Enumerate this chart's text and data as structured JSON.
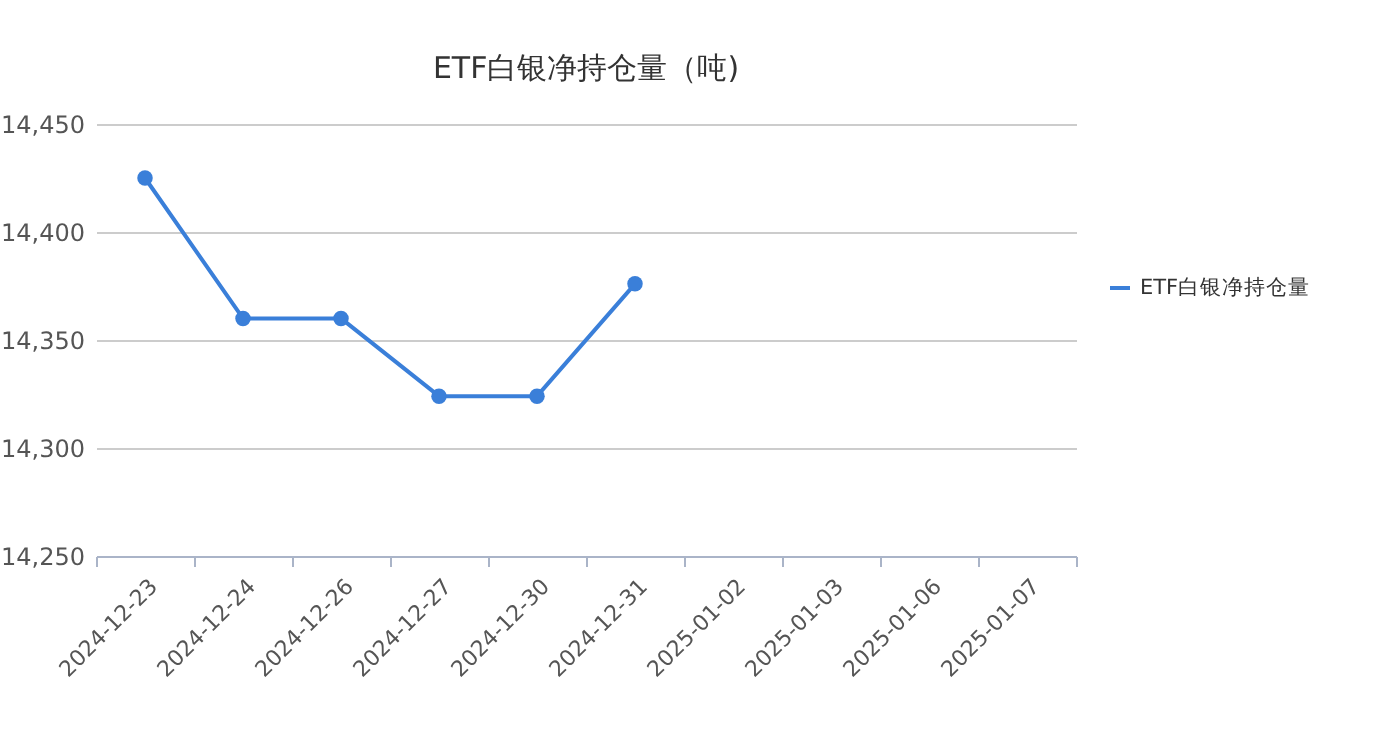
{
  "chart_data": {
    "type": "line",
    "title": "ETF白银净持仓量（吨)",
    "categories": [
      "2024-12-23",
      "2024-12-24",
      "2024-12-26",
      "2024-12-27",
      "2024-12-30",
      "2024-12-31",
      "2025-01-02",
      "2025-01-03",
      "2025-01-06",
      "2025-01-07"
    ],
    "series": [
      {
        "name": "ETF白银净持仓量",
        "color": "#3a7fd9",
        "values": [
          14425,
          14360,
          14360,
          14324,
          14324,
          14376,
          null,
          null,
          null,
          null
        ]
      }
    ],
    "ylim": [
      14250,
      14450
    ],
    "yticks": [
      {
        "value": 14250,
        "label": "14,250"
      },
      {
        "value": 14300,
        "label": "14,300"
      },
      {
        "value": 14350,
        "label": "14,350"
      },
      {
        "value": 14400,
        "label": "14,400"
      },
      {
        "value": 14450,
        "label": "14,450"
      }
    ],
    "grid": "y",
    "legend": "right",
    "marker": "circle",
    "line_style": "solid"
  }
}
